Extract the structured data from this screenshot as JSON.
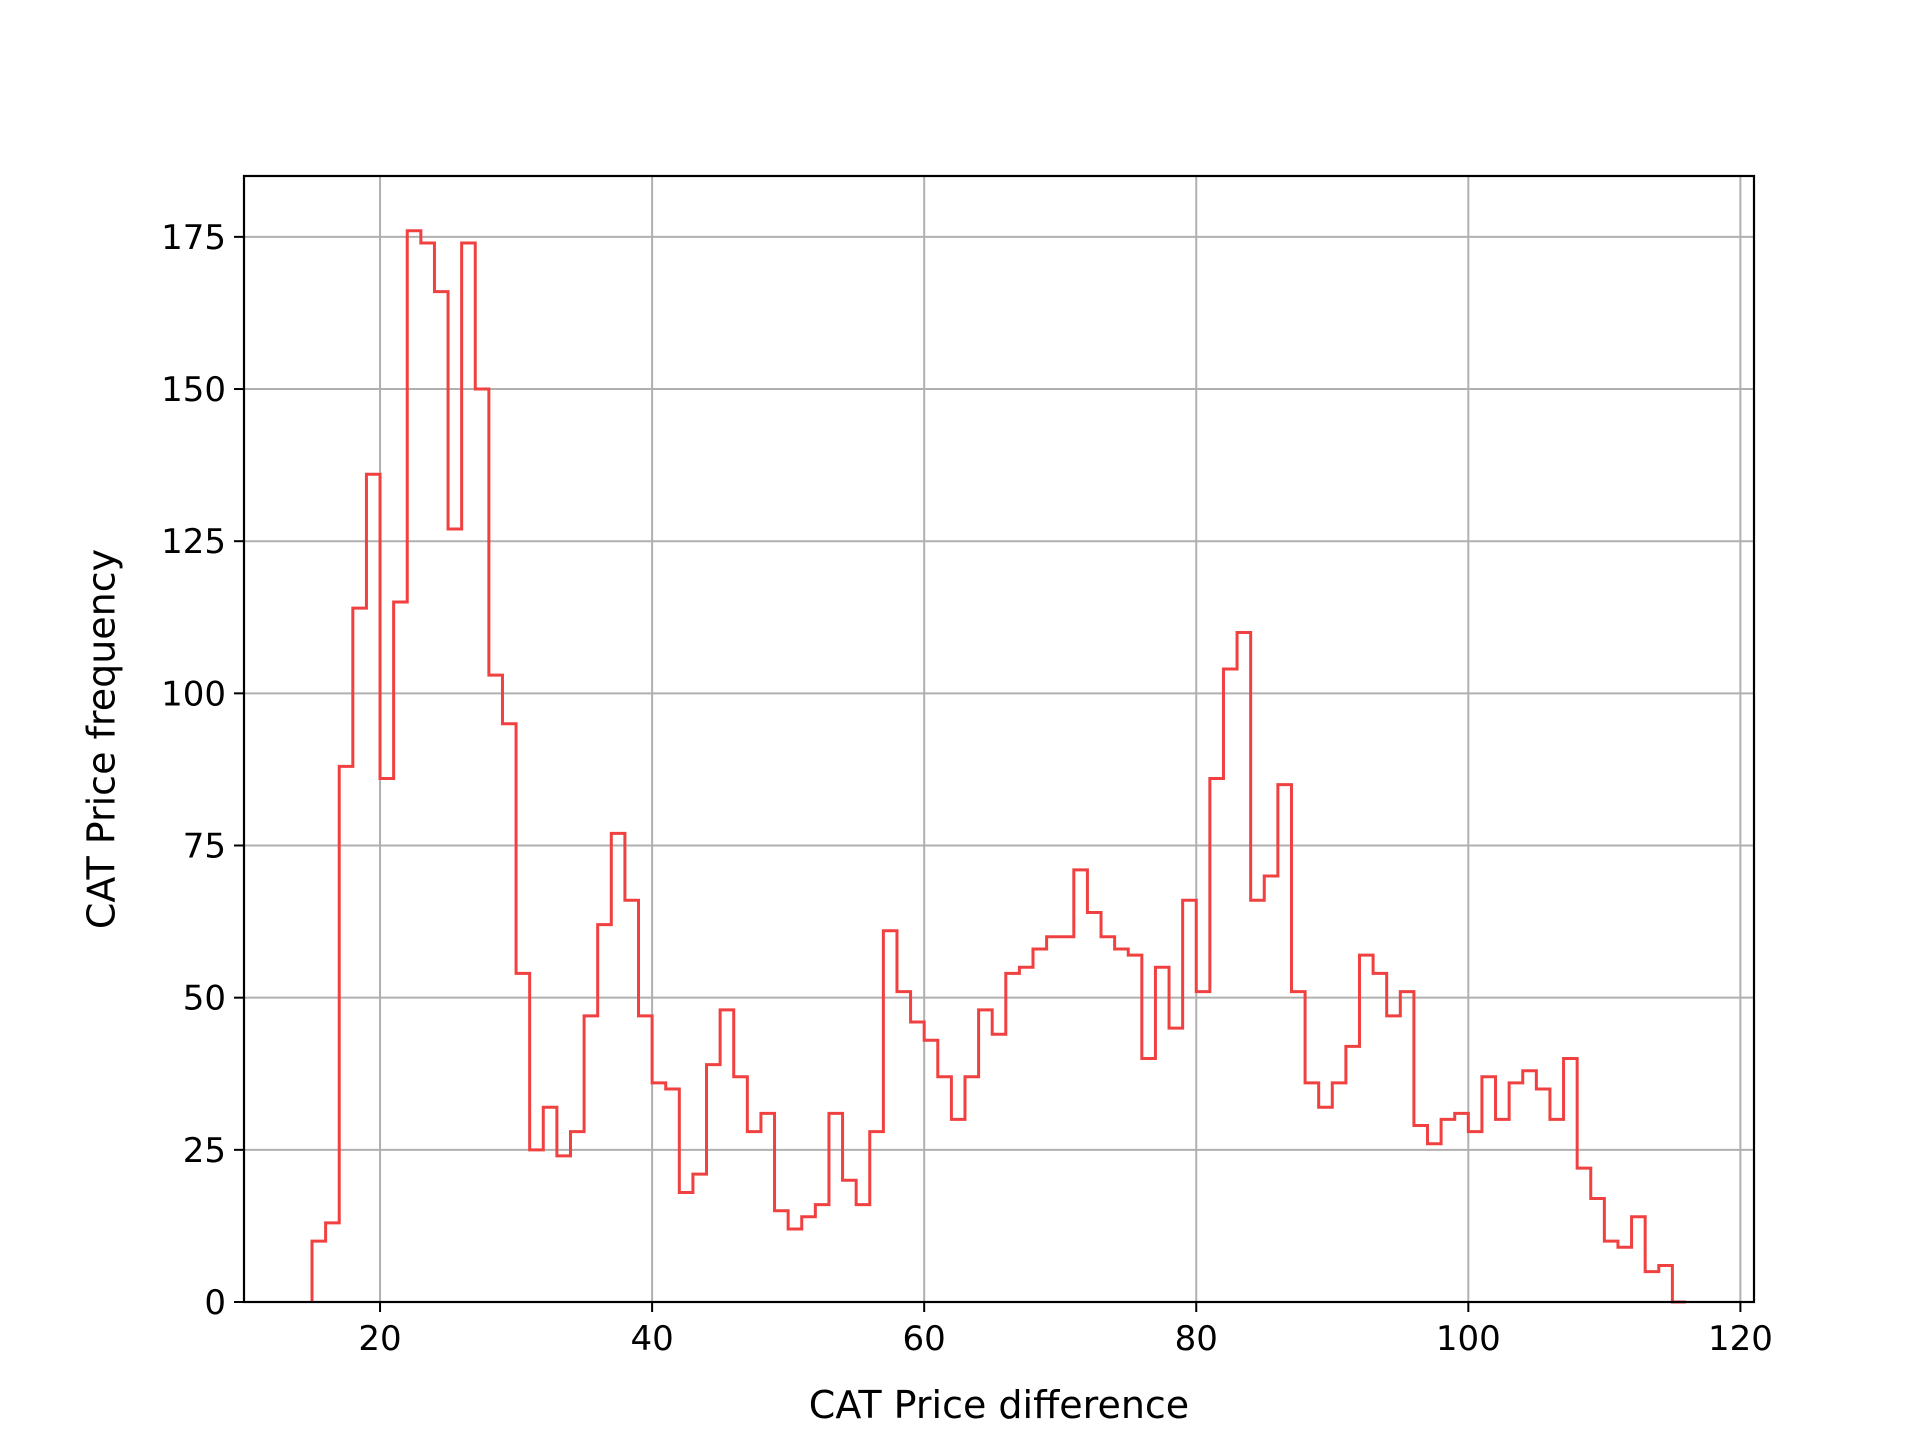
{
  "chart_data": {
    "type": "histogram",
    "xlabel": "CAT Price difference",
    "ylabel": "CAT Price frequency",
    "xlim": [
      10,
      121
    ],
    "ylim": [
      0,
      185
    ],
    "x_ticks": [
      "20",
      "40",
      "60",
      "80",
      "100",
      "120"
    ],
    "y_ticks": [
      "0",
      "25",
      "50",
      "75",
      "100",
      "125",
      "150",
      "175"
    ],
    "grid": true,
    "series": [
      {
        "bin_start": 15,
        "bin_width": 1,
        "values": [
          10,
          13,
          88,
          114,
          136,
          86,
          115,
          176,
          174,
          166,
          127,
          174,
          150,
          103,
          95,
          54,
          25,
          32,
          24,
          28,
          47,
          62,
          77,
          66,
          47,
          36,
          35,
          18,
          21,
          39,
          48,
          37,
          28,
          31,
          15,
          12,
          14,
          16,
          31,
          20,
          16,
          28,
          61,
          51,
          46,
          43,
          37,
          30,
          37,
          48,
          44,
          54,
          55,
          58,
          60,
          60,
          71,
          64,
          60,
          58,
          57,
          40,
          55,
          45,
          66,
          51,
          86,
          104,
          110,
          66,
          70,
          85,
          51,
          36,
          32,
          36,
          42,
          57,
          54,
          47,
          51,
          29,
          26,
          30,
          31,
          28,
          37,
          30,
          36,
          38,
          35,
          30,
          40,
          22,
          17,
          10,
          9,
          14,
          5,
          6,
          0
        ]
      }
    ],
    "colors": {
      "line": "#f04040",
      "grid": "#b0b0b0",
      "axes": "#000000"
    }
  }
}
